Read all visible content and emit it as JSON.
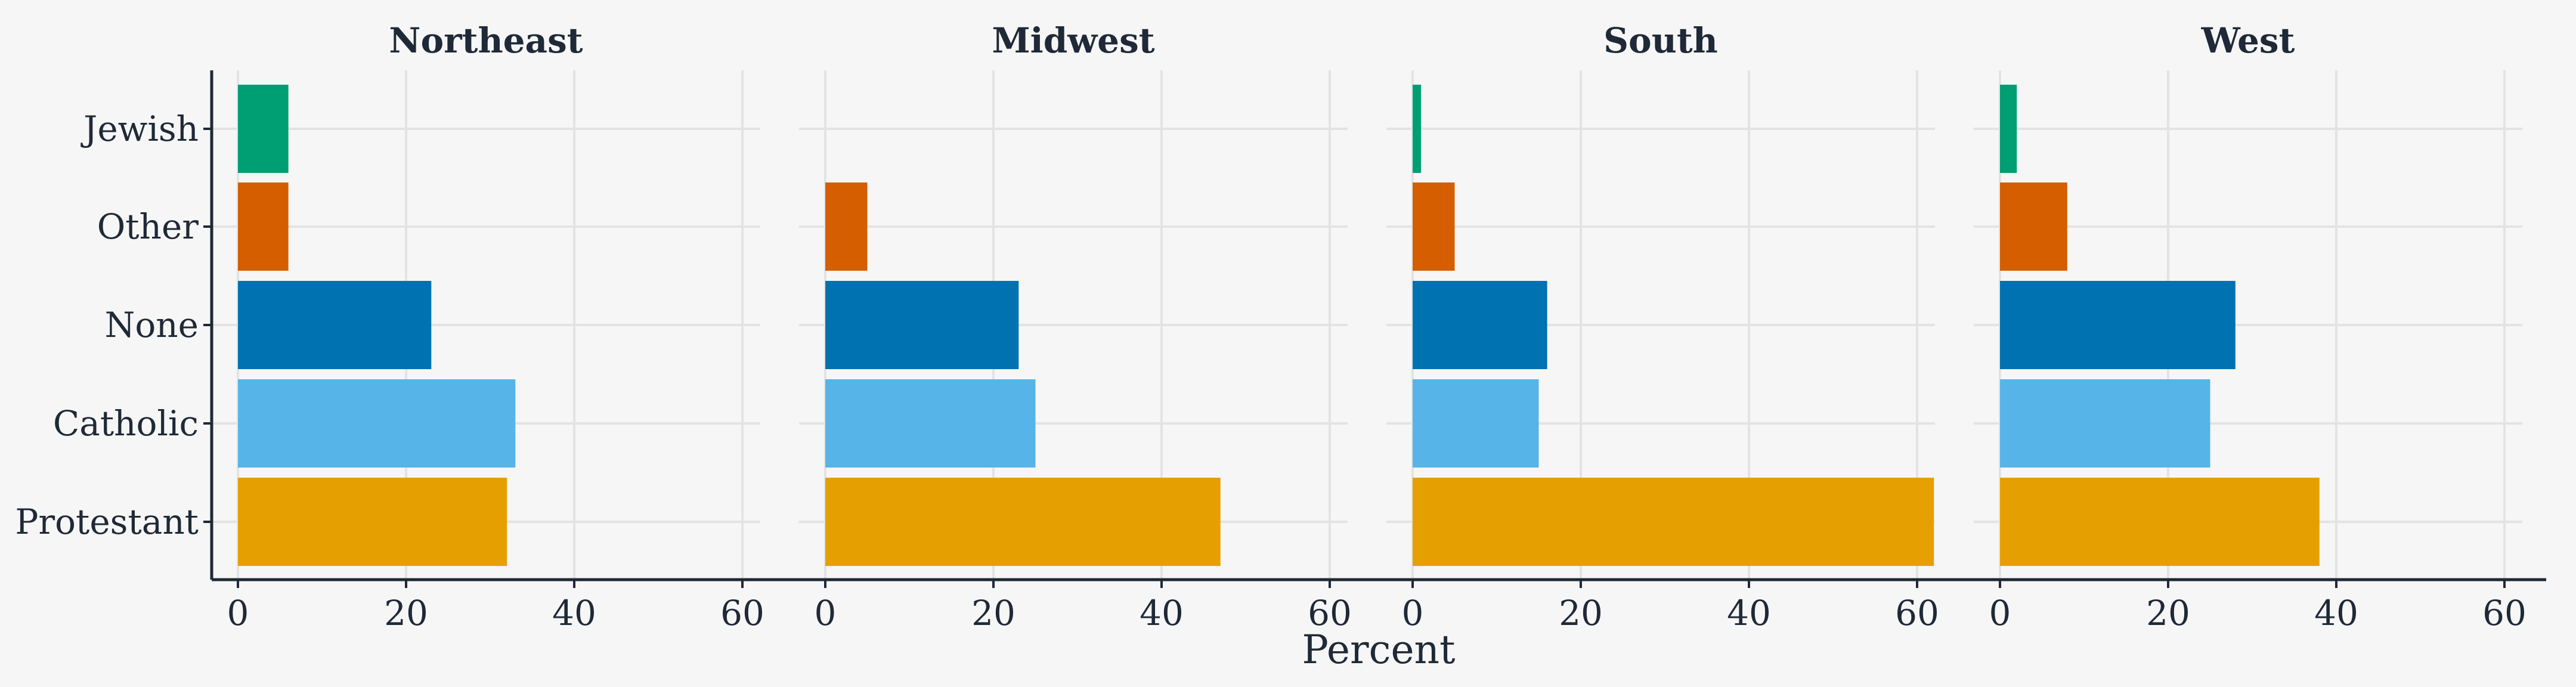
{
  "chart_data": {
    "type": "bar",
    "orientation": "horizontal",
    "facets": [
      "Northeast",
      "Midwest",
      "South",
      "West"
    ],
    "categories": [
      "Protestant",
      "Catholic",
      "None",
      "Other",
      "Jewish"
    ],
    "xlabel": "Percent",
    "ylabel": "",
    "xlim": [
      0,
      65
    ],
    "xticks": [
      0,
      20,
      40,
      60
    ],
    "grid": true,
    "legend": "none",
    "colors": {
      "Protestant": "#E69F00",
      "Catholic": "#56B4E9",
      "None": "#0072B2",
      "Other": "#D55E00",
      "Jewish": "#009E73"
    },
    "panels": [
      {
        "title": "Northeast",
        "values": {
          "Protestant": 32,
          "Catholic": 33,
          "None": 23,
          "Other": 6,
          "Jewish": 6
        }
      },
      {
        "title": "Midwest",
        "values": {
          "Protestant": 47,
          "Catholic": 25,
          "None": 23,
          "Other": 5,
          "Jewish": 0
        }
      },
      {
        "title": "South",
        "values": {
          "Protestant": 62,
          "Catholic": 15,
          "None": 16,
          "Other": 5,
          "Jewish": 1
        }
      },
      {
        "title": "West",
        "values": {
          "Protestant": 38,
          "Catholic": 25,
          "None": 28,
          "Other": 8,
          "Jewish": 2
        }
      }
    ]
  }
}
